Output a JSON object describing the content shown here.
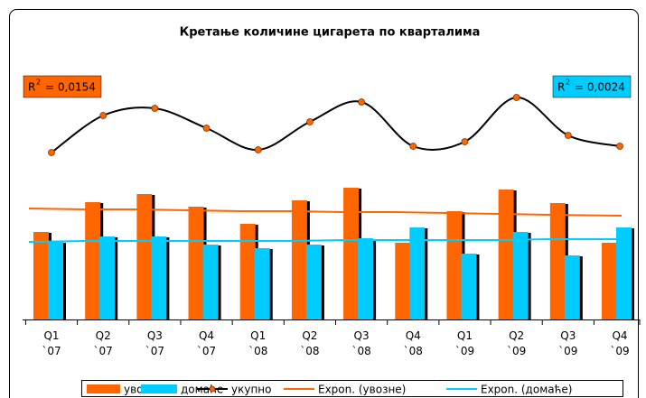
{
  "chart_data": {
    "type": "bar",
    "title": "Кретање количине цигарета по кварталима",
    "categories": [
      "Q1 `07",
      "Q2 `07",
      "Q3 `07",
      "Q4 `07",
      "Q1 `08",
      "Q2 `08",
      "Q3 `08",
      "Q4 `08",
      "Q1 `09",
      "Q2 `09",
      "Q3 `09",
      "Q4 `09"
    ],
    "ylim": [
      0,
      300
    ],
    "series": [
      {
        "name": "увозне",
        "kind": "bar",
        "color": "#ff6600",
        "values": [
          97,
          130,
          139,
          125,
          106,
          132,
          146,
          85,
          120,
          144,
          129,
          85
        ]
      },
      {
        "name": "домаће",
        "kind": "bar",
        "color": "#00ccff",
        "values": [
          86,
          92,
          92,
          83,
          79,
          83,
          90,
          102,
          73,
          97,
          71,
          102
        ]
      },
      {
        "name": "укупно",
        "kind": "line",
        "color": "#000000",
        "marker_color": "#ff6600",
        "values": [
          185,
          226,
          234,
          212,
          188,
          219,
          241,
          192,
          197,
          246,
          204,
          192
        ]
      },
      {
        "name": "Expon. (увозне)",
        "kind": "trend",
        "color": "#ff6600",
        "values": [
          123,
          122,
          122,
          121,
          120,
          120,
          119,
          119,
          118,
          117,
          116,
          115
        ]
      },
      {
        "name": "Expon. (домаће)",
        "kind": "trend",
        "color": "#00ccff",
        "values": [
          86,
          87,
          87,
          87,
          87,
          87,
          88,
          88,
          88,
          88,
          89,
          89
        ]
      }
    ],
    "annotations": [
      {
        "base": "R",
        "sup": "2",
        "text": "= 0,0154",
        "color": "#ff6600",
        "corner": "left"
      },
      {
        "base": "R",
        "sup": "2",
        "text": "= 0,0024",
        "color": "#00ccff",
        "corner": "right"
      }
    ]
  }
}
